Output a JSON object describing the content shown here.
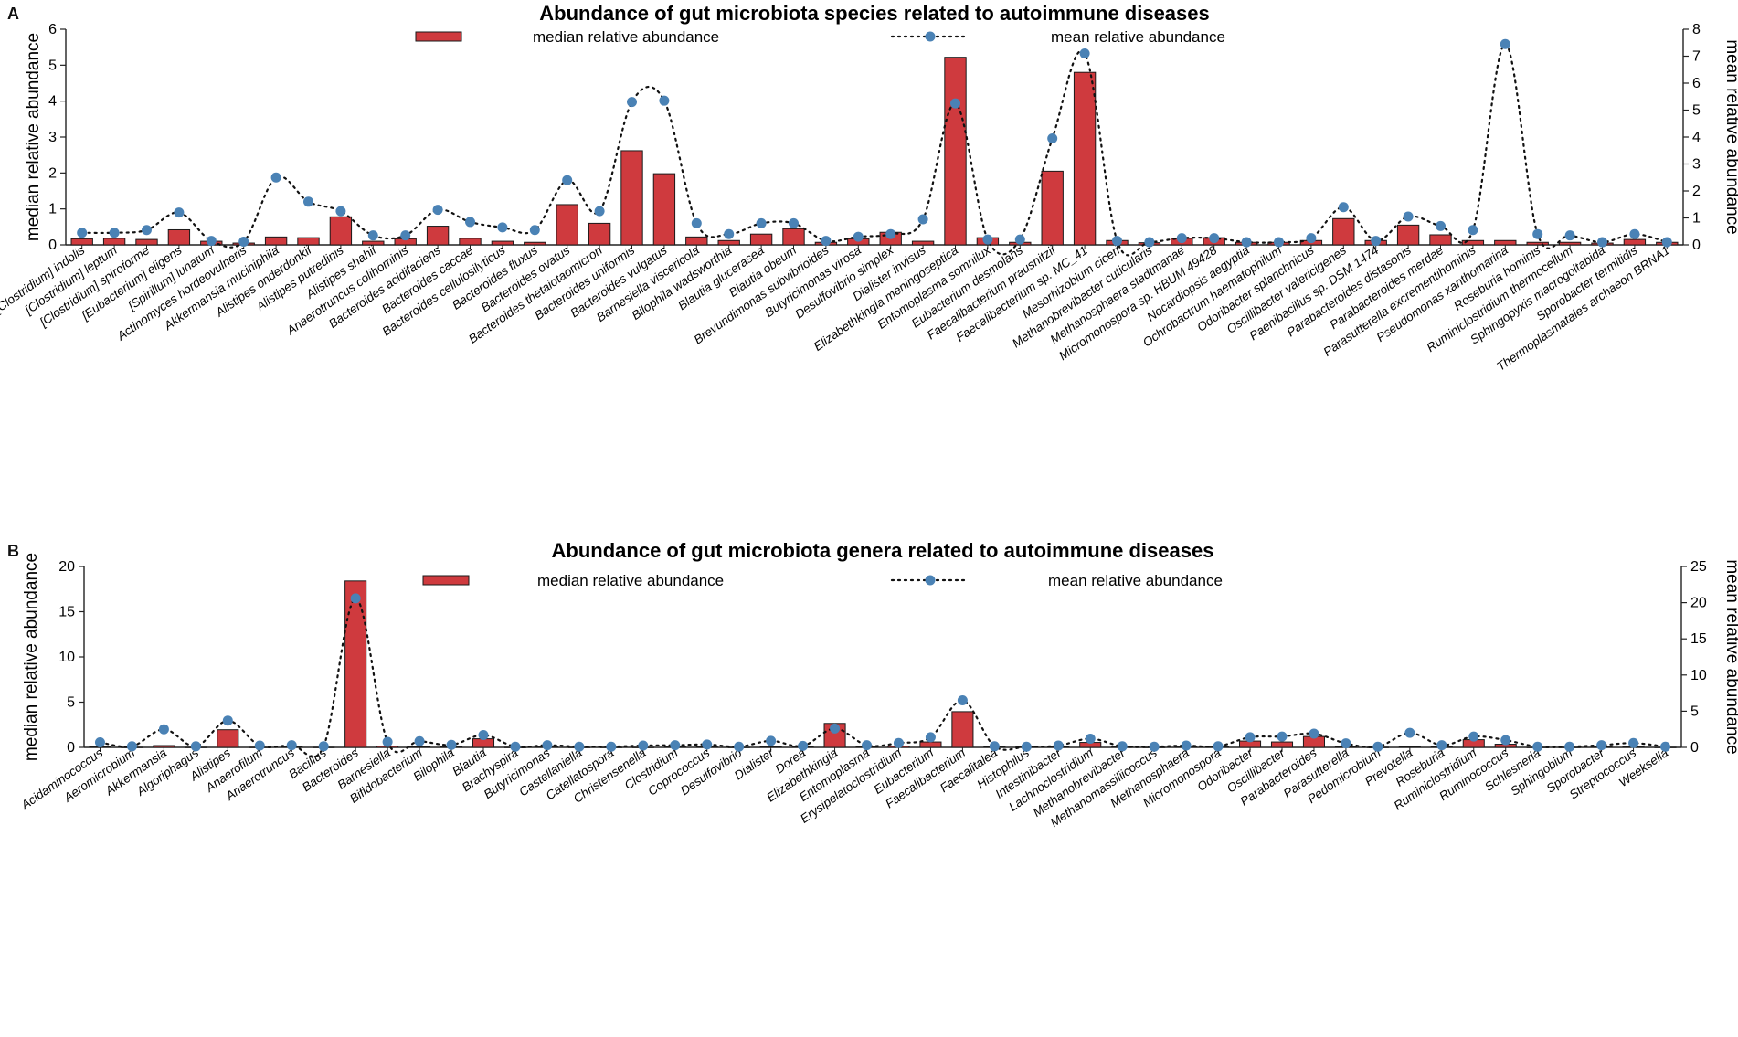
{
  "panels": [
    {
      "letter": "A",
      "chart_data": {
        "type": "bar",
        "title": "Abundance of gut microbiota species related to autoimmune diseases",
        "ylabel": "median relative abundance",
        "y2label": "mean relative abundance",
        "ylim": [
          0,
          6
        ],
        "y2lim": [
          0,
          8
        ],
        "yticks": [
          "0",
          "1",
          "2",
          "3",
          "4",
          "5",
          "6"
        ],
        "y2ticks": [
          "0",
          "1",
          "2",
          "3",
          "4",
          "5",
          "6",
          "7",
          "8"
        ],
        "legend": {
          "bar": "median relative abundance",
          "line": "mean relative abundance",
          "position": "top"
        },
        "bar_color": "#cf3a3e",
        "line_color": "#4a82b5",
        "categories": [
          "[Clostridium] indolis",
          "[Clostridium] leptum",
          "[Clostridium] spiroforme",
          "[Eubacterium] eligens",
          "[Spirillum] lunatum",
          "Actinomyces hordeovulneris",
          "Akkermansia muciniphila",
          "Alistipes onderdonkii",
          "Alistipes putredinis",
          "Alistipes shahii",
          "Anaerotruncus colihominis",
          "Bacteroides acidifaciens",
          "Bacteroides caccae",
          "Bacteroides cellulosilyticus",
          "Bacteroides fluxus",
          "Bacteroides ovatus",
          "Bacteroides thetaiotaomicron",
          "Bacteroides uniformis",
          "Bacteroides vulgatus",
          "Barnesiella viscericola",
          "Bilophila wadsworthia",
          "Blautia glucerasea",
          "Blautia obeum",
          "Brevundimonas subvibrioides",
          "Butyricimonas virosa",
          "Desulfovibrio simplex",
          "Dialister invisus",
          "Elizabethkingia meningoseptica",
          "Entomoplasma somnilux",
          "Eubacterium desmolans",
          "Faecalibacterium prausnitzii",
          "Faecalibacterium sp. MC_41",
          "Mesorhizobium ciceri",
          "Methanobrevibacter cuticularis",
          "Methanosphaera stadtmanae",
          "Micromonospora sp. HBUM 49428",
          "Nocardiopsis aegyptia",
          "Ochrobactrum haematophilum",
          "Odoribacter splanchnicus",
          "Oscillibacter valericigenes",
          "Paenibacillus sp. DSM 1474",
          "Parabacteroides distasonis",
          "Parabacteroides merdae",
          "Parasutterella excrementihominis",
          "Pseudomonas xanthomarina",
          "Roseburia hominis",
          "Ruminiclostridium thermocellum",
          "Sphingopyxis macrogoltabida",
          "Sporobacter termitidis",
          "Thermoplasmatales archaeon BRNA1"
        ],
        "series": [
          {
            "name": "median relative abundance",
            "axis": "left",
            "values": [
              0.17,
              0.18,
              0.15,
              0.42,
              0.1,
              0.05,
              0.22,
              0.2,
              0.78,
              0.1,
              0.17,
              0.52,
              0.18,
              0.1,
              0.07,
              1.12,
              0.6,
              2.62,
              1.98,
              0.22,
              0.12,
              0.3,
              0.45,
              0.07,
              0.17,
              0.35,
              0.1,
              5.22,
              0.2,
              0.07,
              2.05,
              4.8,
              0.12,
              0.06,
              0.18,
              0.2,
              0.07,
              0.07,
              0.12,
              0.73,
              0.12,
              0.55,
              0.28,
              0.12,
              0.12,
              0.07,
              0.07,
              0.05,
              0.15,
              0.07
            ]
          },
          {
            "name": "mean relative abundance",
            "axis": "right",
            "values": [
              0.45,
              0.45,
              0.55,
              1.2,
              0.15,
              0.12,
              2.5,
              1.6,
              1.25,
              0.35,
              0.35,
              1.3,
              0.85,
              0.65,
              0.55,
              2.4,
              1.25,
              5.3,
              5.35,
              0.8,
              0.4,
              0.8,
              0.8,
              0.15,
              0.3,
              0.4,
              0.95,
              5.25,
              0.2,
              0.2,
              3.95,
              7.1,
              0.15,
              0.1,
              0.25,
              0.25,
              0.1,
              0.1,
              0.25,
              1.4,
              0.15,
              1.05,
              0.7,
              0.55,
              7.45,
              0.4,
              0.35,
              0.1,
              0.4,
              0.1
            ]
          }
        ]
      }
    },
    {
      "letter": "B",
      "chart_data": {
        "type": "bar",
        "title": "Abundance of gut microbiota genera related to autoimmune diseases",
        "ylabel": "median relative abundance",
        "y2label": "mean relative abundance",
        "ylim": [
          0,
          20
        ],
        "y2lim": [
          0,
          25
        ],
        "yticks": [
          "0",
          "5",
          "10",
          "15",
          "20"
        ],
        "y2ticks": [
          "0",
          "5",
          "10",
          "15",
          "20",
          "25"
        ],
        "legend": {
          "bar": "median relative abundance",
          "line": "mean relative abundance",
          "position": "top"
        },
        "bar_color": "#cf3a3e",
        "line_color": "#4a82b5",
        "categories": [
          "Acidaminococcus",
          "Aeromicrobium",
          "Akkermansia",
          "Algoriphagus",
          "Alistipes",
          "Anaerofilum",
          "Anaerotruncus",
          "Bacillus",
          "Bacteroides",
          "Barnesiella",
          "Bifidobacterium",
          "Bilophila",
          "Blautia",
          "Brachyspira",
          "Butyricimonas",
          "Castellaniella",
          "Catellatospora",
          "Christensenella",
          "Clostridium",
          "Coprococcus",
          "Desulfovibrio",
          "Dialister",
          "Dorea",
          "Elizabethkingia",
          "Entomoplasma",
          "Erysipelatoclostridium",
          "Eubacterium",
          "Faecalibacterium",
          "Faecalitalea",
          "Histophilus",
          "Intestinibacter",
          "Lachnoclostridium",
          "Methanobrevibacter",
          "Methanomassiliicoccus",
          "Methanosphaera",
          "Micromonospora",
          "Odoribacter",
          "Oscillibacter",
          "Parabacteroides",
          "Parasutterella",
          "Pedomicrobium",
          "Prevotella",
          "Roseburia",
          "Ruminiclostridium",
          "Ruminococcus",
          "Schlesneria",
          "Sphingobium",
          "Sporobacter",
          "Streptococcus",
          "Weeksella"
        ],
        "series": [
          {
            "name": "median relative abundance",
            "axis": "left",
            "values": [
              0.05,
              0.02,
              0.2,
              0.02,
              1.95,
              0.02,
              0.08,
              0.02,
              18.4,
              0.15,
              0.05,
              0.05,
              0.95,
              0.02,
              0.05,
              0.02,
              0.02,
              0.02,
              0.05,
              0.05,
              0.02,
              0.05,
              0.05,
              2.65,
              0.1,
              0.15,
              0.6,
              3.95,
              0.05,
              0.05,
              0.05,
              0.55,
              0.05,
              0.02,
              0.05,
              0.1,
              0.7,
              0.6,
              1.2,
              0.1,
              0.02,
              0.05,
              0.05,
              0.85,
              0.35,
              0.02,
              0.02,
              0.1,
              0.1,
              0.02
            ]
          },
          {
            "name": "mean relative abundance",
            "axis": "right",
            "values": [
              0.7,
              0.15,
              2.5,
              0.15,
              3.7,
              0.25,
              0.3,
              0.15,
              20.6,
              0.75,
              0.85,
              0.35,
              1.7,
              0.1,
              0.3,
              0.1,
              0.1,
              0.25,
              0.3,
              0.4,
              0.1,
              0.9,
              0.2,
              2.6,
              0.3,
              0.6,
              1.4,
              6.5,
              0.15,
              0.1,
              0.25,
              1.2,
              0.15,
              0.1,
              0.25,
              0.15,
              1.4,
              1.5,
              1.9,
              0.55,
              0.1,
              2.0,
              0.3,
              1.5,
              1.0,
              0.1,
              0.1,
              0.3,
              0.6,
              0.1
            ]
          }
        ]
      }
    }
  ]
}
